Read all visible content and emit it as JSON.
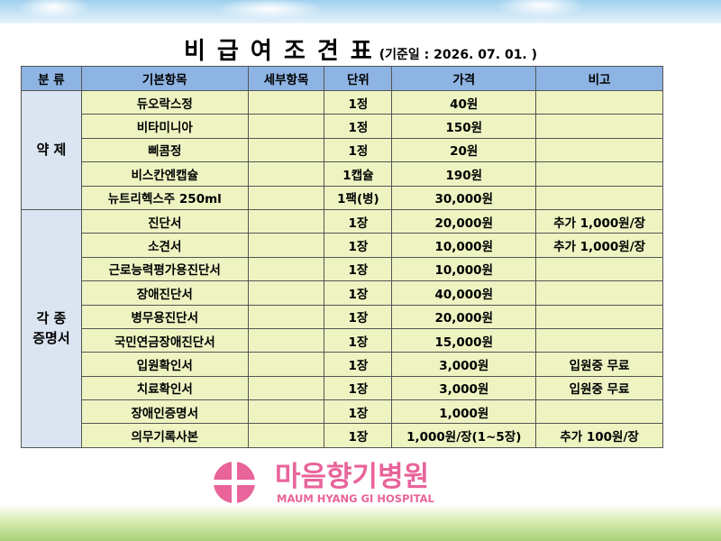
{
  "title": "비 급 여 조 견 표",
  "subtitle": "(기준일 : 2026. 07. 01. )",
  "table": {
    "headers": [
      "분 류",
      "기본항목",
      "세부항목",
      "단위",
      "가격",
      "비고"
    ],
    "groups": [
      {
        "label": [
          "약 제"
        ],
        "rows": [
          {
            "item": "듀오락스정",
            "unit": "1정",
            "price": "40원"
          },
          {
            "item": "비타미니아",
            "unit": "1정",
            "price": "150원"
          },
          {
            "item": "삐콤정",
            "unit": "1정",
            "price": "20원"
          },
          {
            "item": "비스칸엔캡슐",
            "unit": "1캡슐",
            "price": "190원"
          },
          {
            "item": "뉴트리헥스주 250ml",
            "unit": "1팩(병)",
            "price": "30,000원"
          }
        ]
      },
      {
        "label": [
          "각 종",
          "증명서"
        ],
        "rows": [
          {
            "item": "진단서",
            "unit": "1장",
            "price": "20,000원",
            "note": "추가 1,000원/장"
          },
          {
            "item": "소견서",
            "unit": "1장",
            "price": "10,000원",
            "note": "추가 1,000원/장"
          },
          {
            "item": "근로능력평가용진단서",
            "unit": "1장",
            "price": "10,000원"
          },
          {
            "item": "장애진단서",
            "unit": "1장",
            "price": "40,000원"
          },
          {
            "item": "병무용진단서",
            "unit": "1장",
            "price": "20,000원"
          },
          {
            "item": "국민연금장애진단서",
            "unit": "1장",
            "price": "15,000원"
          },
          {
            "item": "입원확인서",
            "unit": "1장",
            "price": "3,000원",
            "note": "입원중 무료"
          },
          {
            "item": "치료확인서",
            "unit": "1장",
            "price": "3,000원",
            "note": "입원중 무료"
          },
          {
            "item": "장애인증명서",
            "unit": "1장",
            "price": "1,000원"
          },
          {
            "item": "의무기록사본",
            "unit": "1장",
            "price": "1,000원/장(1~5장)",
            "note": "추가 100원/장"
          }
        ]
      }
    ]
  },
  "logo": {
    "name": "마음향기병원",
    "english": "MAUM HYANG GI HOSPITAL"
  }
}
